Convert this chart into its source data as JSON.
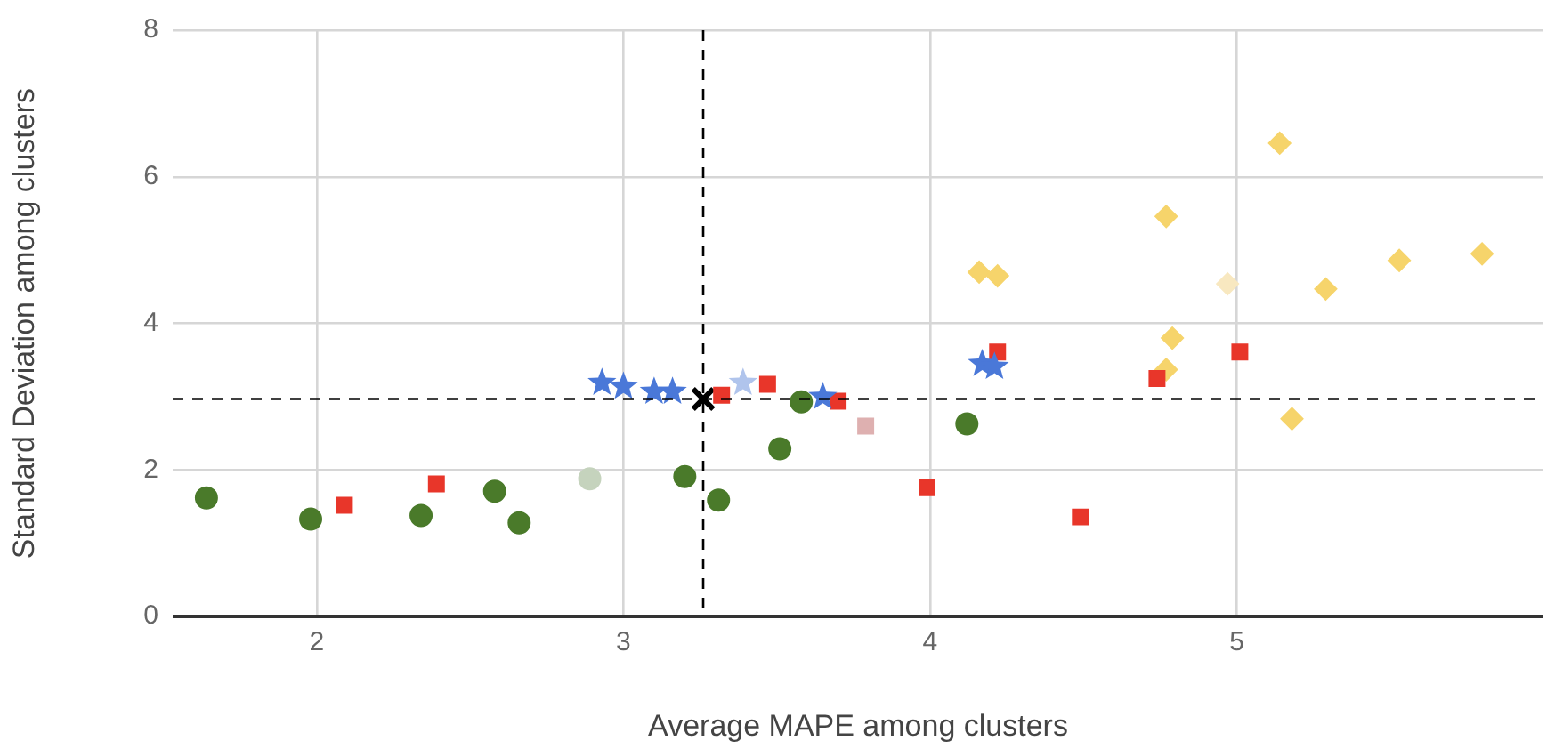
{
  "chart_data": {
    "type": "scatter",
    "xlabel": "Average MAPE among clusters",
    "ylabel": "Standard Deviation among clusters",
    "xlim": [
      1.53,
      6.0
    ],
    "xticks": [
      2,
      3,
      4,
      5
    ],
    "ylim": [
      0,
      8
    ],
    "yticks": [
      0,
      2,
      4,
      6,
      8
    ],
    "grid": true,
    "legend": false,
    "series": [
      {
        "color": "#4a7a2a",
        "marker": "circle",
        "x": [
          1.64,
          1.98,
          2.34,
          2.58,
          2.66,
          3.2,
          3.31,
          3.51,
          3.58,
          4.12
        ],
        "values": [
          1.62,
          1.33,
          1.38,
          1.71,
          1.28,
          1.91,
          1.59,
          2.29,
          2.93,
          2.63
        ]
      },
      {
        "color": "#c5d3bd",
        "marker": "circle",
        "x": [
          2.89
        ],
        "values": [
          1.88
        ]
      },
      {
        "color": "#e8362a",
        "marker": "square",
        "x": [
          2.09,
          2.39,
          3.32,
          3.47,
          3.7,
          3.99,
          4.22,
          4.74,
          5.01,
          4.49
        ],
        "values": [
          1.52,
          1.81,
          3.02,
          3.17,
          2.94,
          1.76,
          3.61,
          3.25,
          3.61,
          1.36
        ]
      },
      {
        "color": "#deb0b0",
        "marker": "square",
        "x": [
          3.79
        ],
        "values": [
          2.6
        ]
      },
      {
        "color": "#4a78d8",
        "marker": "star",
        "x": [
          2.93,
          3.0,
          3.1,
          3.16,
          3.65,
          4.17,
          4.21
        ],
        "values": [
          3.19,
          3.14,
          3.07,
          3.07,
          3.0,
          3.45,
          3.41
        ]
      },
      {
        "color": "#b0c4ec",
        "marker": "star",
        "x": [
          3.39
        ],
        "values": [
          3.19
        ]
      },
      {
        "color": "#f6d46b",
        "marker": "diamond",
        "x": [
          5.14,
          4.77,
          4.16,
          4.22,
          5.8,
          5.53,
          5.29,
          4.79,
          4.77,
          5.18
        ],
        "values": [
          6.46,
          5.46,
          4.7,
          4.65,
          4.95,
          4.86,
          4.47,
          3.8,
          3.37,
          2.7
        ]
      },
      {
        "color": "#f8e8c0",
        "marker": "diamond",
        "x": [
          4.97
        ],
        "values": [
          4.54
        ]
      },
      {
        "color": "#000000",
        "marker": "cross",
        "x": [
          3.26
        ],
        "values": [
          2.97
        ]
      }
    ],
    "ref_lines": [
      {
        "axis": "x",
        "value": 3.26,
        "color": "#000000",
        "line_style": "dashed"
      },
      {
        "axis": "y",
        "value": 2.97,
        "color": "#000000",
        "line_style": "dashed"
      }
    ]
  }
}
